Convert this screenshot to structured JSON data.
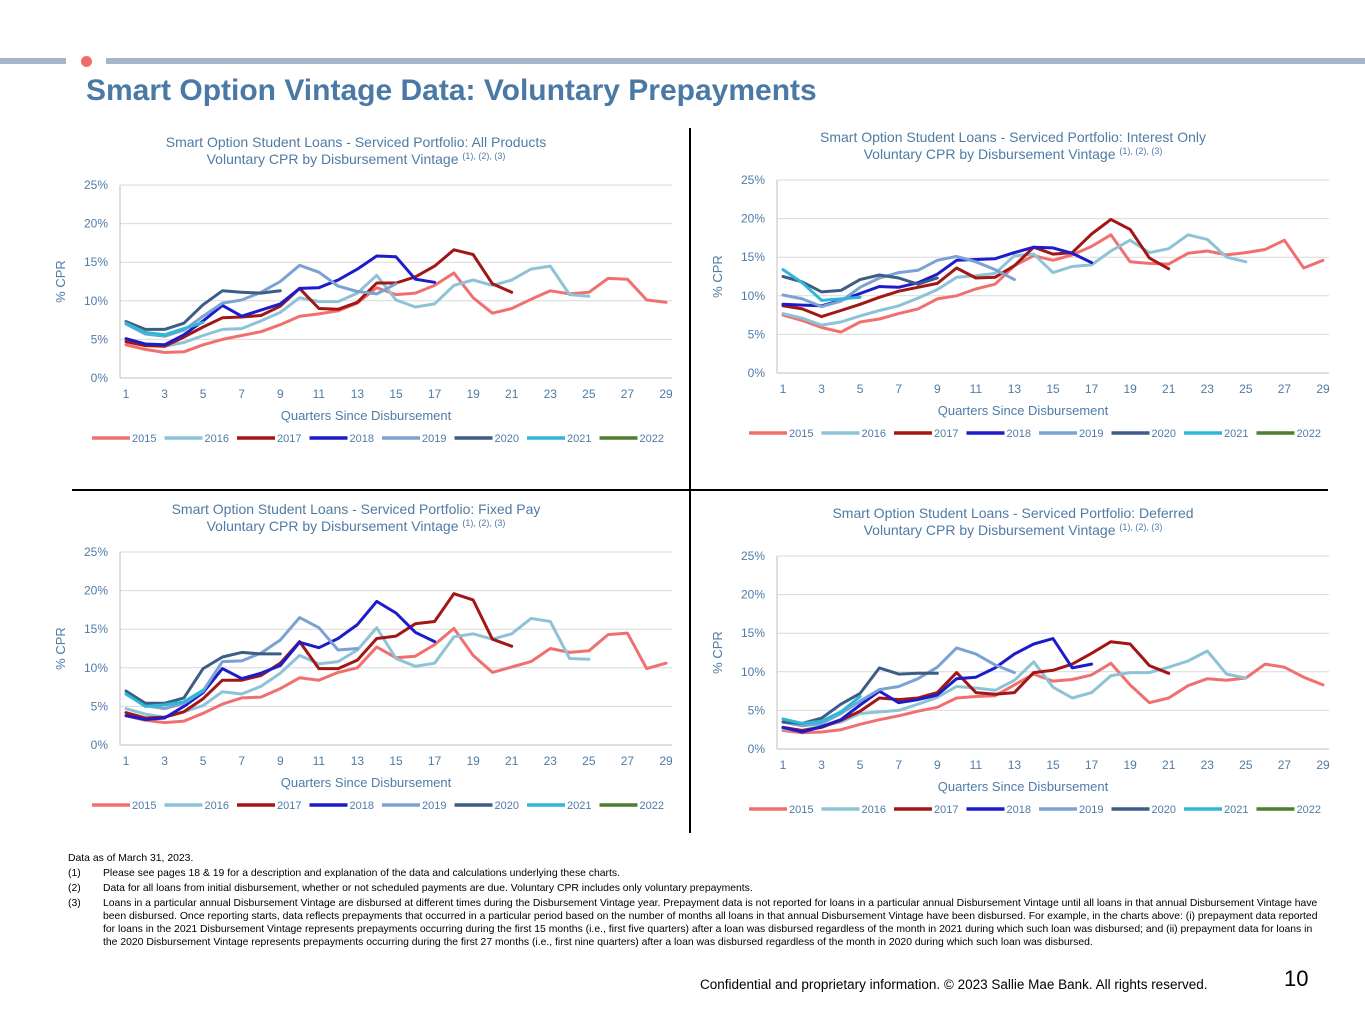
{
  "page": {
    "title": "Smart Option Vintage Data: Voluntary Prepayments",
    "confidential": "Confidential and proprietary information. © 2023 Sallie Mae Bank. All rights reserved.",
    "page_number": "10",
    "accent_color": "#F26B6B",
    "bar_color": "#A6B4CC",
    "title_color": "#4A79A5"
  },
  "footnotes": {
    "as_of": "Data as of March 31, 2023.",
    "items": [
      {
        "num": "(1)",
        "text": "Please see pages 18 & 19 for a description and explanation of the data and calculations underlying these charts."
      },
      {
        "num": "(2)",
        "text": "Data for all loans from initial disbursement, whether or not scheduled payments are due. Voluntary CPR includes only voluntary prepayments."
      },
      {
        "num": "(3)",
        "text": "Loans in a particular annual Disbursement Vintage are disbursed at different times during the Disbursement Vintage year.  Prepayment data is not reported for loans in a particular annual Disbursement Vintage until all loans in that annual Disbursement Vintage have been disbursed.  Once reporting starts, data reflects prepayments that occurred in a particular period based on the number of months all loans in that annual Disbursement Vintage have been disbursed.  For example, in the charts above:  (i) prepayment data reported for loans in the 2021 Disbursement Vintage represents prepayments occurring during the first 15 months (i.e., first five quarters) after a loan was disbursed regardless of the month in 2021 during which such loan was disbursed; and (ii) prepayment data for loans in the 2020 Disbursement Vintage represents prepayments occurring during the first 27 months (i.e., first nine quarters) after a loan was disbursed regardless of the month in 2020 during which such loan was disbursed."
      }
    ]
  },
  "chart_data": [
    {
      "type": "line",
      "title": "Smart Option Student Loans - Serviced Portfolio: All Products",
      "subtitle": "Voluntary CPR by Disbursement Vintage",
      "subtitle_sup": "(1), (2), (3)",
      "xlabel": "Quarters Since Disbursement",
      "ylabel": "% CPR",
      "xlim": [
        1,
        29
      ],
      "xticks": [
        "1",
        "3",
        "5",
        "7",
        "9",
        "11",
        "13",
        "15",
        "17",
        "19",
        "21",
        "23",
        "25",
        "27",
        "29"
      ],
      "ylim": [
        0,
        25
      ],
      "yticks": [
        "0%",
        "5%",
        "10%",
        "15%",
        "20%",
        "25%"
      ],
      "grid": true,
      "legend": "bottom",
      "series": [
        {
          "name": "2015",
          "color": "#F07070",
          "values": [
            4.3,
            3.7,
            3.3,
            3.4,
            4.3,
            5.0,
            5.5,
            6.0,
            6.9,
            8.0,
            8.3,
            8.7,
            9.7,
            11.7,
            10.8,
            11.0,
            12.0,
            13.6,
            10.4,
            8.4,
            9.0,
            10.2,
            11.3,
            10.9,
            11.1,
            12.9,
            12.8,
            10.1,
            9.8
          ]
        },
        {
          "name": "2016",
          "color": "#8EC3D7",
          "values": [
            4.8,
            4.3,
            4.1,
            4.6,
            5.5,
            6.3,
            6.4,
            7.4,
            8.5,
            10.4,
            9.9,
            9.9,
            11.0,
            13.3,
            10.1,
            9.2,
            9.6,
            12.0,
            12.7,
            12.0,
            12.7,
            14.1,
            14.5,
            10.8,
            10.6
          ]
        },
        {
          "name": "2017",
          "color": "#A31616",
          "values": [
            4.7,
            4.2,
            4.1,
            5.3,
            6.6,
            7.8,
            7.9,
            8.1,
            9.3,
            11.6,
            9.0,
            8.9,
            9.8,
            12.3,
            12.3,
            13.1,
            14.5,
            16.6,
            16.0,
            12.2,
            11.1
          ]
        },
        {
          "name": "2018",
          "color": "#1C1CCB",
          "values": [
            5.1,
            4.4,
            4.3,
            5.6,
            7.4,
            9.4,
            8.0,
            8.8,
            9.6,
            11.6,
            11.7,
            12.7,
            14.1,
            15.8,
            15.7,
            12.8,
            12.4
          ]
        },
        {
          "name": "2019",
          "color": "#7BA2D3",
          "values": [
            7.0,
            5.7,
            5.4,
            6.2,
            8.0,
            9.7,
            10.1,
            11.1,
            12.5,
            14.6,
            13.7,
            11.9,
            11.2,
            10.9,
            12.2
          ]
        },
        {
          "name": "2020",
          "color": "#3D5D86",
          "values": [
            7.3,
            6.3,
            6.3,
            7.1,
            9.5,
            11.3,
            11.1,
            11.0,
            11.3
          ]
        },
        {
          "name": "2021",
          "color": "#2EB8D6",
          "values": [
            7.1,
            5.9,
            5.6,
            6.4,
            7.2
          ]
        },
        {
          "name": "2022",
          "color": "#4C7E2E",
          "values": []
        }
      ]
    },
    {
      "type": "line",
      "title": "Smart Option Student Loans - Serviced Portfolio: Interest Only",
      "subtitle": "Voluntary CPR by Disbursement Vintage",
      "subtitle_sup": "(1), (2), (3)",
      "xlabel": "Quarters Since Disbursement",
      "ylabel": "% CPR",
      "xlim": [
        1,
        29
      ],
      "xticks": [
        "1",
        "3",
        "5",
        "7",
        "9",
        "11",
        "13",
        "15",
        "17",
        "19",
        "21",
        "23",
        "25",
        "27",
        "29"
      ],
      "ylim": [
        0,
        25
      ],
      "yticks": [
        "0%",
        "5%",
        "10%",
        "15%",
        "20%",
        "25%"
      ],
      "grid": true,
      "legend": "bottom",
      "series": [
        {
          "name": "2015",
          "color": "#F07070",
          "values": [
            7.5,
            6.8,
            5.9,
            5.3,
            6.6,
            7.0,
            7.7,
            8.3,
            9.6,
            10.0,
            10.9,
            11.5,
            13.9,
            15.2,
            14.6,
            15.3,
            16.4,
            17.9,
            14.4,
            14.2,
            14.1,
            15.5,
            15.8,
            15.3,
            15.6,
            16.0,
            17.2,
            13.6,
            14.6
          ]
        },
        {
          "name": "2016",
          "color": "#8EC3D7",
          "values": [
            7.7,
            7.1,
            6.2,
            6.6,
            7.4,
            8.1,
            8.7,
            9.7,
            10.8,
            12.4,
            12.6,
            12.9,
            15.2,
            15.4,
            13.0,
            13.8,
            14.0,
            15.8,
            17.2,
            15.6,
            16.1,
            17.9,
            17.3,
            15.0,
            14.4
          ]
        },
        {
          "name": "2017",
          "color": "#A31616",
          "values": [
            8.7,
            8.3,
            7.3,
            8.1,
            8.9,
            9.8,
            10.6,
            11.1,
            11.6,
            13.6,
            12.3,
            12.4,
            13.9,
            16.3,
            15.4,
            15.6,
            18.0,
            19.9,
            18.6,
            14.9,
            13.5
          ]
        },
        {
          "name": "2018",
          "color": "#1C1CCB",
          "values": [
            8.9,
            8.8,
            8.7,
            9.4,
            10.3,
            11.2,
            11.1,
            11.7,
            12.8,
            14.6,
            14.7,
            14.8,
            15.6,
            16.3,
            16.2,
            15.5,
            14.3
          ]
        },
        {
          "name": "2019",
          "color": "#7BA2D3",
          "values": [
            10.1,
            9.6,
            8.6,
            9.3,
            11.1,
            12.3,
            13.0,
            13.3,
            14.6,
            15.1,
            14.4,
            13.4,
            12.1
          ]
        },
        {
          "name": "2020",
          "color": "#3D5D86",
          "values": [
            12.5,
            11.8,
            10.5,
            10.7,
            12.1,
            12.7,
            12.3,
            11.5,
            12.3
          ]
        },
        {
          "name": "2021",
          "color": "#2EB8D6",
          "values": [
            13.4,
            11.7,
            9.4,
            9.6,
            9.8
          ]
        },
        {
          "name": "2022",
          "color": "#4C7E2E",
          "values": []
        }
      ]
    },
    {
      "type": "line",
      "title": "Smart Option Student Loans - Serviced Portfolio: Fixed Pay",
      "subtitle": "Voluntary CPR by Disbursement Vintage",
      "subtitle_sup": "(1), (2), (3)",
      "xlabel": "Quarters Since Disbursement",
      "ylabel": "% CPR",
      "xlim": [
        1,
        29
      ],
      "xticks": [
        "1",
        "3",
        "5",
        "7",
        "9",
        "11",
        "13",
        "15",
        "17",
        "19",
        "21",
        "23",
        "25",
        "27",
        "29"
      ],
      "ylim": [
        0,
        25
      ],
      "yticks": [
        "0%",
        "5%",
        "10%",
        "15%",
        "20%",
        "25%"
      ],
      "grid": true,
      "legend": "bottom",
      "series": [
        {
          "name": "2015",
          "color": "#F07070",
          "values": [
            3.8,
            3.2,
            2.9,
            3.1,
            4.1,
            5.3,
            6.1,
            6.2,
            7.3,
            8.7,
            8.4,
            9.4,
            10.0,
            12.7,
            11.3,
            11.5,
            13.0,
            15.1,
            11.6,
            9.4,
            10.1,
            10.8,
            12.5,
            12.0,
            12.2,
            14.3,
            14.5,
            9.9,
            10.6
          ]
        },
        {
          "name": "2016",
          "color": "#8EC3D7",
          "values": [
            4.7,
            4.0,
            3.6,
            4.3,
            5.1,
            6.9,
            6.6,
            7.6,
            9.3,
            11.6,
            10.5,
            10.8,
            12.3,
            15.2,
            11.2,
            10.2,
            10.6,
            14.0,
            14.4,
            13.7,
            14.4,
            16.4,
            16.0,
            11.2,
            11.1
          ]
        },
        {
          "name": "2017",
          "color": "#A31616",
          "values": [
            4.2,
            3.5,
            3.6,
            4.3,
            6.0,
            8.4,
            8.4,
            9.0,
            10.6,
            13.4,
            9.9,
            9.9,
            11.0,
            13.8,
            14.1,
            15.7,
            16.0,
            19.6,
            18.8,
            13.7,
            12.8
          ]
        },
        {
          "name": "2018",
          "color": "#1C1CCB",
          "values": [
            3.8,
            3.3,
            3.5,
            5.0,
            6.8,
            9.9,
            8.6,
            9.3,
            10.3,
            13.3,
            12.6,
            13.8,
            15.6,
            18.6,
            17.1,
            14.6,
            13.4
          ]
        },
        {
          "name": "2019",
          "color": "#7BA2D3",
          "values": [
            6.6,
            5.1,
            4.7,
            5.4,
            7.0,
            10.8,
            10.9,
            11.9,
            13.6,
            16.5,
            15.2,
            12.3,
            12.5
          ]
        },
        {
          "name": "2020",
          "color": "#3D5D86",
          "values": [
            7.0,
            5.4,
            5.4,
            6.1,
            9.9,
            11.4,
            12.0,
            11.8,
            11.8
          ]
        },
        {
          "name": "2021",
          "color": "#2EB8D6",
          "values": [
            6.6,
            5.0,
            5.2,
            5.6,
            7.1
          ]
        },
        {
          "name": "2022",
          "color": "#4C7E2E",
          "values": []
        }
      ]
    },
    {
      "type": "line",
      "title": "Smart Option Student Loans - Serviced Portfolio: Deferred",
      "subtitle": "Voluntary CPR by Disbursement Vintage",
      "subtitle_sup": "(1), (2), (3)",
      "xlabel": "Quarters Since Disbursement",
      "ylabel": "% CPR",
      "xlim": [
        1,
        29
      ],
      "xticks": [
        "1",
        "3",
        "5",
        "7",
        "9",
        "11",
        "13",
        "15",
        "17",
        "19",
        "21",
        "23",
        "25",
        "27",
        "29"
      ],
      "ylim": [
        0,
        25
      ],
      "yticks": [
        "0%",
        "5%",
        "10%",
        "15%",
        "20%",
        "25%"
      ],
      "grid": true,
      "legend": "bottom",
      "series": [
        {
          "name": "2015",
          "color": "#F07070",
          "values": [
            2.4,
            2.1,
            2.2,
            2.5,
            3.2,
            3.8,
            4.3,
            4.9,
            5.4,
            6.6,
            6.8,
            6.9,
            8.3,
            9.7,
            8.8,
            9.0,
            9.6,
            11.1,
            8.3,
            6.0,
            6.6,
            8.2,
            9.1,
            8.9,
            9.2,
            11.0,
            10.6,
            9.3,
            8.3
          ]
        },
        {
          "name": "2016",
          "color": "#8EC3D7",
          "values": [
            2.6,
            2.4,
            3.0,
            3.5,
            4.6,
            4.8,
            5.0,
            5.8,
            6.7,
            8.1,
            7.9,
            7.6,
            8.9,
            11.3,
            8.0,
            6.6,
            7.3,
            9.5,
            9.9,
            9.9,
            10.6,
            11.4,
            12.7,
            9.7,
            9.2
          ]
        },
        {
          "name": "2017",
          "color": "#A31616",
          "values": [
            2.8,
            2.4,
            2.8,
            3.7,
            4.9,
            6.6,
            6.4,
            6.6,
            7.3,
            9.9,
            7.3,
            7.1,
            7.3,
            9.9,
            10.2,
            11.0,
            12.4,
            13.9,
            13.6,
            10.8,
            9.8
          ]
        },
        {
          "name": "2018",
          "color": "#1C1CCB",
          "values": [
            2.8,
            2.2,
            2.9,
            3.8,
            5.7,
            7.5,
            6.0,
            6.4,
            7.0,
            9.1,
            9.3,
            10.5,
            12.3,
            13.6,
            14.3,
            10.5,
            11.0
          ]
        },
        {
          "name": "2019",
          "color": "#7BA2D3",
          "values": [
            3.5,
            3.0,
            3.3,
            4.6,
            6.2,
            7.7,
            8.1,
            9.1,
            10.6,
            13.1,
            12.3,
            10.9,
            9.9
          ]
        },
        {
          "name": "2020",
          "color": "#3D5D86",
          "values": [
            3.5,
            3.3,
            4.0,
            5.8,
            7.2,
            10.5,
            9.7,
            9.8,
            9.8
          ]
        },
        {
          "name": "2021",
          "color": "#2EB8D6",
          "values": [
            3.9,
            3.3,
            3.6,
            4.8,
            6.8
          ]
        },
        {
          "name": "2022",
          "color": "#4C7E2E",
          "values": []
        }
      ]
    }
  ]
}
